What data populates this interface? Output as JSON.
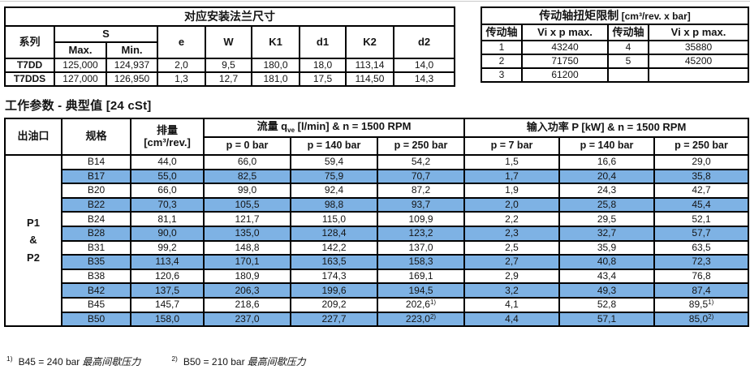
{
  "page": {
    "highlight_blue": "#7EB2E4",
    "top_rule_color": "#c9c9c9"
  },
  "flange_table": {
    "title": "对应安装法兰尺寸",
    "headers": {
      "series": "系列",
      "s": "S",
      "s_max": "Max.",
      "s_min": "Min.",
      "e": "e",
      "w": "W",
      "k1": "K1",
      "d1": "d1",
      "k2": "K2",
      "d2": "d2"
    },
    "rows": [
      [
        "T7DD",
        "125,000",
        "124,937",
        "2,0",
        "9,5",
        "180,0",
        "18,0",
        "113,14",
        "14,0"
      ],
      [
        "T7DDS",
        "127,000",
        "126,950",
        "1,3",
        "12,7",
        "181,0",
        "17,5",
        "114,50",
        "14,3"
      ]
    ]
  },
  "torque_table": {
    "title": "传动轴扭矩限制",
    "title_unit": " [cm³/rev. x bar]",
    "headers": {
      "shaft1": "传动轴",
      "vi1": "Vi x p max.",
      "shaft2": "传动轴",
      "vi2": "Vi x p max."
    },
    "rows": [
      [
        "1",
        "43240",
        "4",
        "35880"
      ],
      [
        "2",
        "71750",
        "5",
        "45200"
      ],
      [
        "3",
        "61200",
        "",
        ""
      ]
    ]
  },
  "params_table": {
    "section_title": "工作参数 - 典型值 [24 cSt]",
    "headers": {
      "port": "出油口",
      "model": "规格",
      "displacement_line1": "排量",
      "displacement_line2": "[cm³/rev.]",
      "flow_prefix": "流量 q",
      "flow_sub": "ve",
      "flow_suffix": " [l/min] & n = 1500 RPM",
      "power": "输入功率 P [kW] & n = 1500 RPM",
      "pressures": [
        "p = 0 bar",
        "p = 140 bar",
        "p = 250 bar",
        "p = 7 bar",
        "p = 140 bar",
        "p = 250 bar"
      ]
    },
    "port_label_lines": [
      "P1",
      "&",
      "P2"
    ],
    "rows": [
      {
        "model": "B14",
        "values": [
          "44,0",
          "66,0",
          "59,4",
          "54,2",
          "1,5",
          "16,6",
          "29,0"
        ],
        "highlight": false
      },
      {
        "model": "B17",
        "values": [
          "55,0",
          "82,5",
          "75,9",
          "70,7",
          "1,7",
          "20,4",
          "35,8"
        ],
        "highlight": true
      },
      {
        "model": "B20",
        "values": [
          "66,0",
          "99,0",
          "92,4",
          "87,2",
          "1,9",
          "24,3",
          "42,7"
        ],
        "highlight": false
      },
      {
        "model": "B22",
        "values": [
          "70,3",
          "105,5",
          "98,8",
          "93,7",
          "2,0",
          "25,8",
          "45,4"
        ],
        "highlight": true
      },
      {
        "model": "B24",
        "values": [
          "81,1",
          "121,7",
          "115,0",
          "109,9",
          "2,2",
          "29,5",
          "52,1"
        ],
        "highlight": false
      },
      {
        "model": "B28",
        "values": [
          "90,0",
          "135,0",
          "128,4",
          "123,2",
          "2,3",
          "32,7",
          "57,7"
        ],
        "highlight": true
      },
      {
        "model": "B31",
        "values": [
          "99,2",
          "148,8",
          "142,2",
          "137,0",
          "2,5",
          "35,9",
          "63,5"
        ],
        "highlight": false
      },
      {
        "model": "B35",
        "values": [
          "113,4",
          "170,1",
          "163,5",
          "158,3",
          "2,7",
          "40,8",
          "72,3"
        ],
        "highlight": true
      },
      {
        "model": "B38",
        "values": [
          "120,6",
          "180,9",
          "174,3",
          "169,1",
          "2,9",
          "43,4",
          "76,8"
        ],
        "highlight": false
      },
      {
        "model": "B42",
        "values": [
          "137,5",
          "206,3",
          "199,6",
          "194,5",
          "3,2",
          "49,3",
          "87,4"
        ],
        "highlight": true
      },
      {
        "model": "B45",
        "values": [
          "145,7",
          "218,6",
          "209,2",
          "202,6^1)",
          "4,1",
          "52,8",
          "89,5^1)"
        ],
        "highlight": false
      },
      {
        "model": "B50",
        "values": [
          "158,0",
          "237,0",
          "227,7",
          "223,0^2)",
          "4,4",
          "57,1",
          "85,0^2)"
        ],
        "highlight": true
      }
    ]
  },
  "footnotes": [
    {
      "sup": "1)",
      "text": "B45 = 240 bar",
      "italic": "最高间歇压力"
    },
    {
      "sup": "2)",
      "text": "B50 = 210 bar",
      "italic": "最高间歇压力"
    }
  ]
}
